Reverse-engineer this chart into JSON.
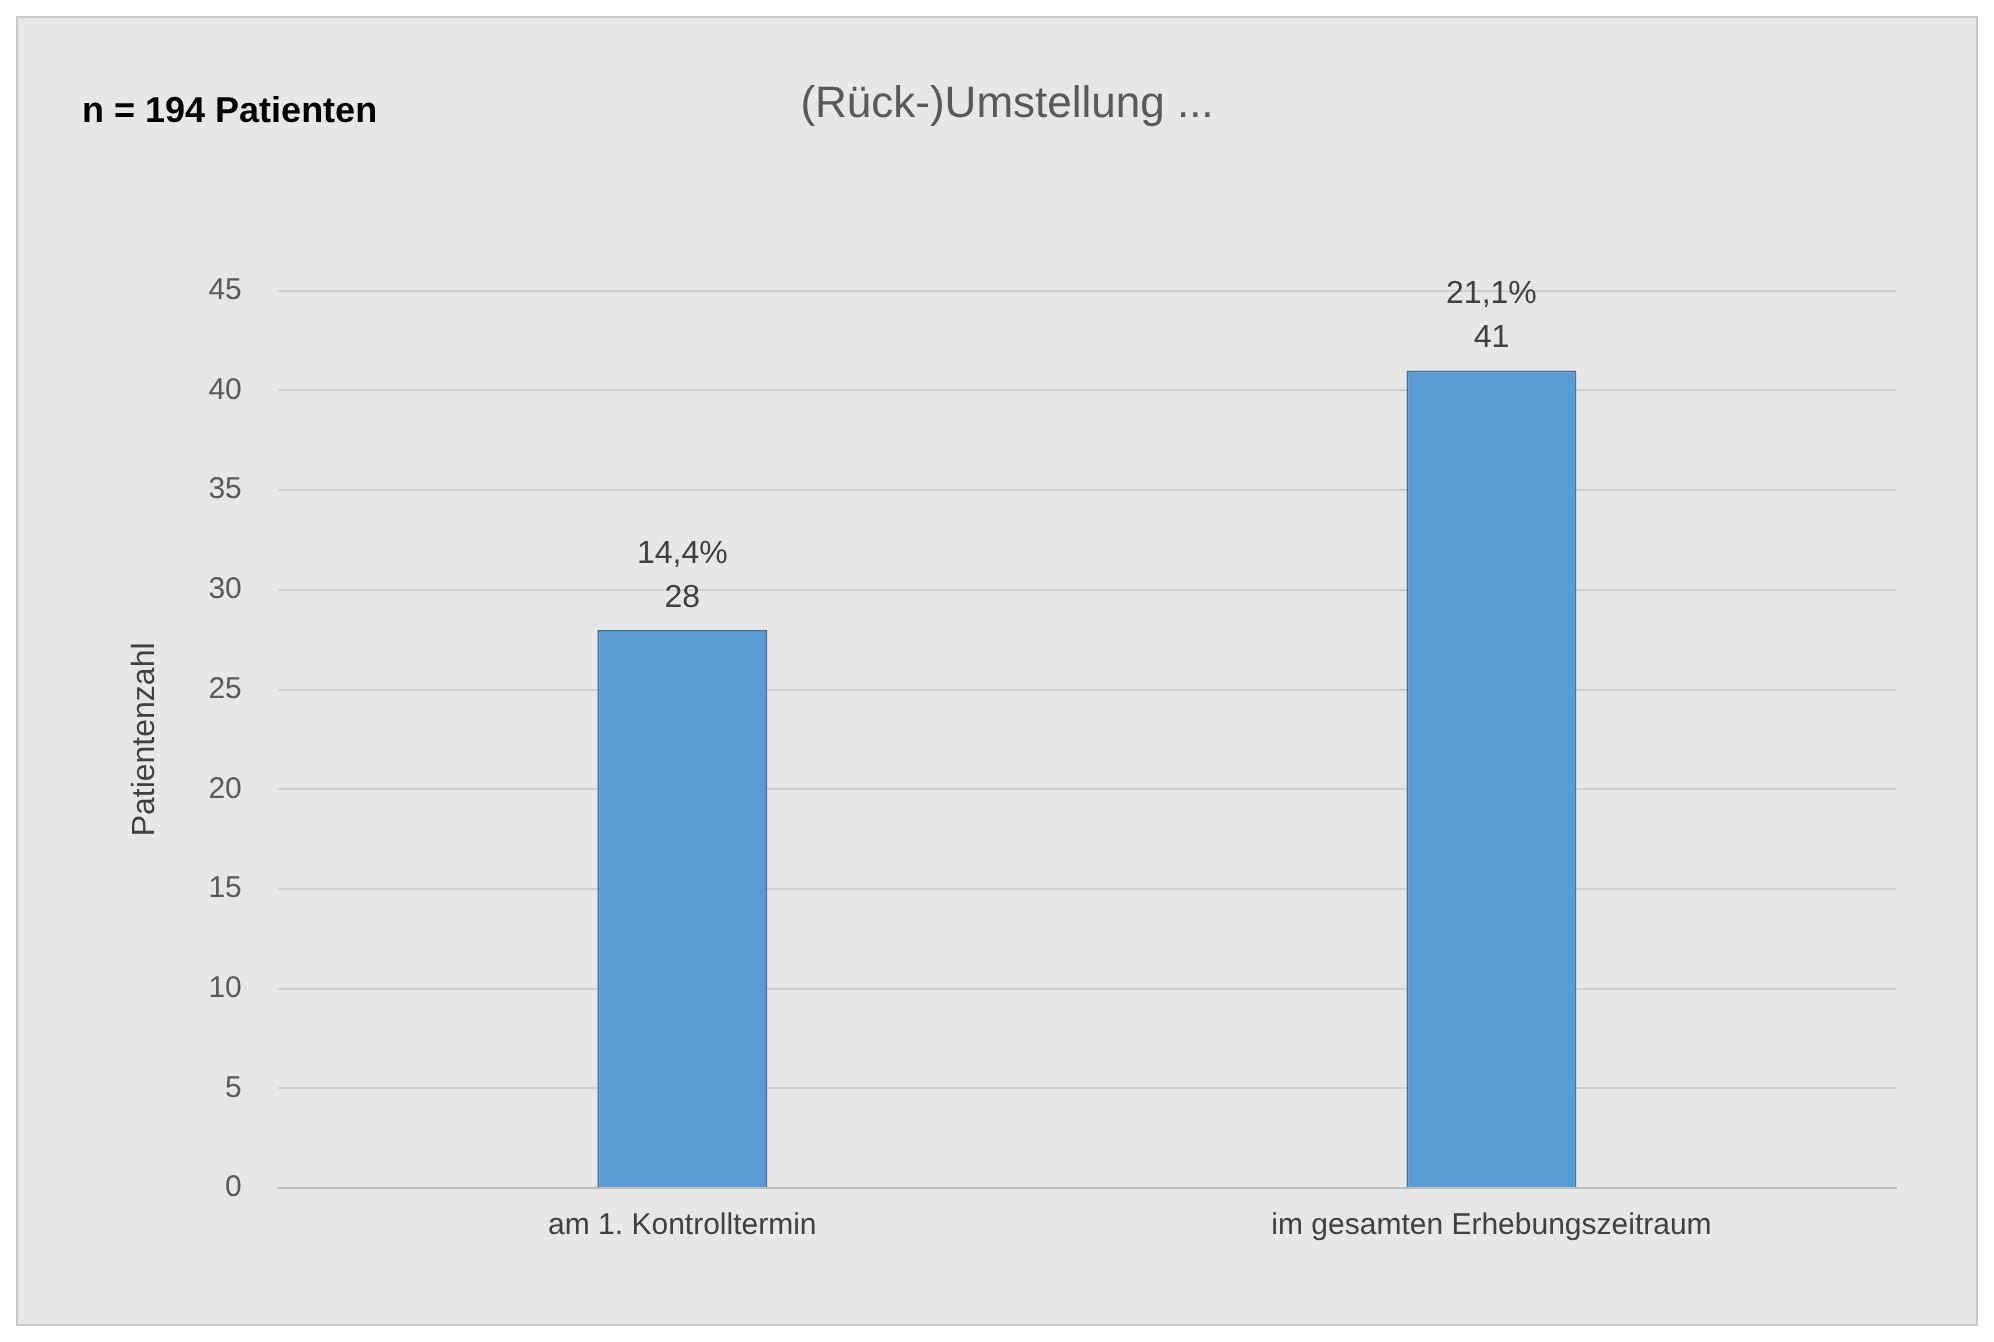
{
  "chart_data": {
    "type": "bar",
    "title": "(Rück-)Umstellung ...",
    "annotations": [
      "n = 194 Patienten"
    ],
    "categories": [
      "am 1. Kontrolltermin",
      "im gesamten Erhebungszeitraum"
    ],
    "values": [
      28,
      41
    ],
    "color": "#5b9bd5",
    "value_labels": [
      "14,4%\n28",
      "21,1%\n41"
    ],
    "ylabel": "Patientenzahl",
    "ylim": [
      0,
      45
    ],
    "yticks": [
      0,
      5,
      10,
      15,
      20,
      25,
      30,
      35,
      40,
      45
    ],
    "grid": "y"
  }
}
